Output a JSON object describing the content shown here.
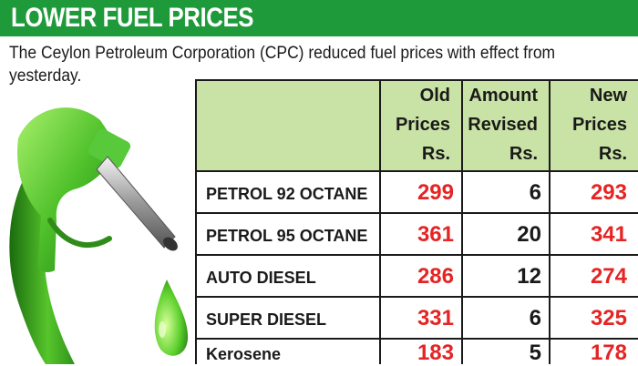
{
  "banner": {
    "title": "LOWER FUEL PRICES"
  },
  "intro": "The Ceylon Petroleum Corporation (CPC) reduced fuel prices with effect from yesterday.",
  "table": {
    "headers": [
      {
        "line1": "",
        "line2": "",
        "line3": ""
      },
      {
        "line1": "Old",
        "line2": "Prices",
        "line3": "Rs."
      },
      {
        "line1": "Amount",
        "line2": "Revised",
        "line3": "Rs."
      },
      {
        "line1": "New",
        "line2": "Prices",
        "line3": "Rs."
      }
    ],
    "rows": [
      {
        "fuel": "PETROL 92 OCTANE",
        "old": "299",
        "revised": "6",
        "new": "293"
      },
      {
        "fuel": "PETROL 95 OCTANE",
        "old": "361",
        "revised": "20",
        "new": "341"
      },
      {
        "fuel": "AUTO DIESEL",
        "old": "286",
        "revised": "12",
        "new": "274"
      },
      {
        "fuel": "SUPER DIESEL",
        "old": "331",
        "revised": "6",
        "new": "325"
      },
      {
        "fuel": "Kerosene",
        "old": "183",
        "revised": "5",
        "new": "178"
      }
    ]
  },
  "colors": {
    "banner": "#1f9a3b",
    "header_bg": "#c9e2a5",
    "price_red": "#e52424"
  },
  "illustration": "fuel-nozzle-icon"
}
